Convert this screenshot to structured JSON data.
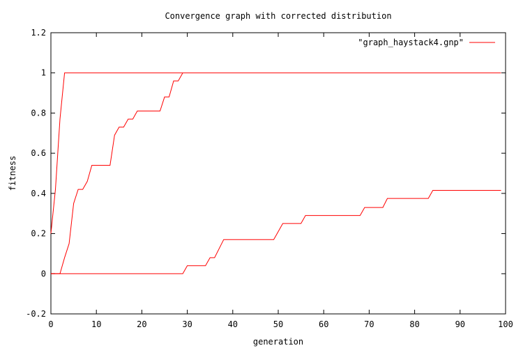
{
  "chart_data": {
    "type": "line",
    "title": "Convergence graph with corrected distribution",
    "xlabel": "generation",
    "ylabel": "fitness",
    "xlim": [
      0,
      100
    ],
    "ylim": [
      -0.2,
      1.2
    ],
    "x_ticks": [
      0,
      10,
      20,
      30,
      40,
      50,
      60,
      70,
      80,
      90,
      100
    ],
    "y_ticks": [
      -0.2,
      0,
      0.2,
      0.4,
      0.6,
      0.8,
      1,
      1.2
    ],
    "x_tick_labels": [
      "0",
      "10",
      "20",
      "30",
      "40",
      "50",
      "60",
      "70",
      "80",
      "90",
      "100"
    ],
    "y_tick_labels": [
      "-0.2",
      "0",
      "0.2",
      "0.4",
      "0.6",
      "0.8",
      "1",
      "1.2"
    ],
    "grid": false,
    "legend_position": "top-right",
    "legend_label": "\"graph_haystack4.gnp\"",
    "line_color": "#ff0000",
    "series": [
      {
        "name": "\"graph_haystack4.gnp\"",
        "points": [
          [
            0,
            0.2
          ],
          [
            1,
            0.42
          ],
          [
            2,
            0.77
          ],
          [
            3,
            1
          ],
          [
            99,
            1
          ]
        ]
      },
      {
        "points": [
          [
            0,
            0
          ],
          [
            2,
            0
          ],
          [
            3,
            0.08
          ],
          [
            4,
            0.15
          ],
          [
            5,
            0.35
          ],
          [
            6,
            0.42
          ],
          [
            7,
            0.42
          ],
          [
            8,
            0.46
          ],
          [
            9,
            0.54
          ],
          [
            13,
            0.54
          ],
          [
            14,
            0.69
          ],
          [
            15,
            0.73
          ],
          [
            16,
            0.73
          ],
          [
            17,
            0.77
          ],
          [
            18,
            0.77
          ],
          [
            19,
            0.81
          ],
          [
            24,
            0.81
          ],
          [
            25,
            0.88
          ],
          [
            26,
            0.88
          ],
          [
            27,
            0.96
          ],
          [
            28,
            0.96
          ],
          [
            29,
            1
          ]
        ]
      },
      {
        "points": [
          [
            0,
            0
          ],
          [
            28,
            0
          ],
          [
            29,
            0
          ],
          [
            30,
            0.04
          ],
          [
            34,
            0.04
          ],
          [
            35,
            0.08
          ],
          [
            36,
            0.08
          ],
          [
            38,
            0.17
          ],
          [
            49,
            0.17
          ],
          [
            50,
            0.21
          ],
          [
            51,
            0.25
          ],
          [
            55,
            0.25
          ],
          [
            56,
            0.29
          ],
          [
            68,
            0.29
          ],
          [
            69,
            0.33
          ],
          [
            73,
            0.33
          ],
          [
            74,
            0.375
          ],
          [
            83,
            0.375
          ],
          [
            84,
            0.415
          ],
          [
            99,
            0.415
          ]
        ]
      }
    ]
  }
}
